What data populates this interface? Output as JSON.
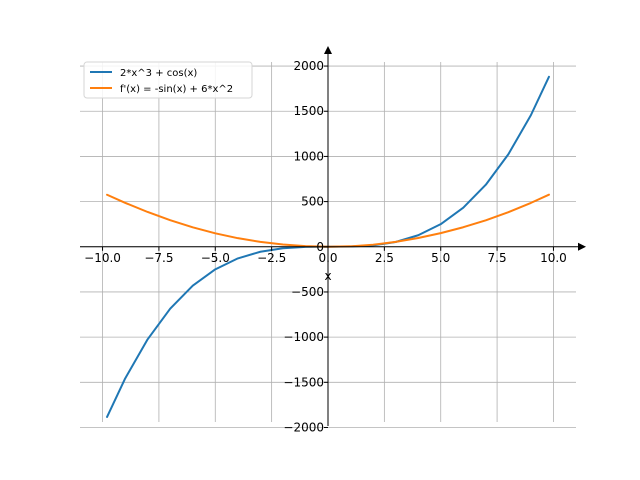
{
  "chart_data": {
    "type": "line",
    "x_range": [
      -11.0,
      11.0
    ],
    "y_range": [
      -2050,
      2200
    ],
    "grid": true,
    "legend_placement": "top-left",
    "xlabel": "x",
    "ylabel": "",
    "x_ticks": [
      -10.0,
      -7.5,
      -5.0,
      -2.5,
      0.0,
      2.5,
      5.0,
      7.5,
      10.0
    ],
    "y_ticks": [
      -2000,
      -1500,
      -1000,
      -500,
      0,
      500,
      1000,
      1500,
      2000
    ],
    "x_tick_labels": [
      "−10.0",
      "−7.5",
      "−5.0",
      "−2.5",
      "0.0",
      "2.5",
      "5.0",
      "7.5",
      "10.0"
    ],
    "y_tick_labels": [
      "−2000",
      "−1500",
      "−1000",
      "−500",
      "0",
      "500",
      "1000",
      "1500",
      "2000"
    ],
    "series": [
      {
        "name": "2*x^3 + cos(x)",
        "color": "#1f77b4",
        "x": [
          -9.8,
          -9.0,
          -8.0,
          -7.0,
          -6.0,
          -5.0,
          -4.0,
          -3.0,
          -2.0,
          -1.0,
          0.0,
          1.0,
          2.0,
          3.0,
          4.0,
          5.0,
          6.0,
          7.0,
          8.0,
          9.0,
          9.8
        ],
        "y": [
          -1883.2,
          -1459.1,
          -1024.1,
          -685.2,
          -431.0,
          -249.7,
          -128.7,
          -55.0,
          -16.4,
          -1.5,
          1.0,
          2.5,
          15.6,
          53.0,
          127.3,
          250.3,
          433.0,
          686.8,
          1023.9,
          1457.1,
          1881.3
        ]
      },
      {
        "name": "f'(x) = -sin(x) + 6*x^2",
        "color": "#ff7f0e",
        "x": [
          -9.8,
          -9.0,
          -8.0,
          -7.0,
          -6.0,
          -5.0,
          -4.0,
          -3.0,
          -2.0,
          -1.0,
          0.0,
          1.0,
          2.0,
          3.0,
          4.0,
          5.0,
          6.0,
          7.0,
          8.0,
          9.0,
          9.8
        ],
        "y": [
          575.8,
          486.4,
          385.0,
          294.7,
          215.7,
          149.0,
          95.2,
          54.1,
          24.9,
          6.8,
          0.0,
          5.2,
          23.1,
          53.9,
          96.8,
          151.0,
          216.3,
          293.3,
          383.0,
          485.6,
          576.6
        ]
      }
    ]
  }
}
